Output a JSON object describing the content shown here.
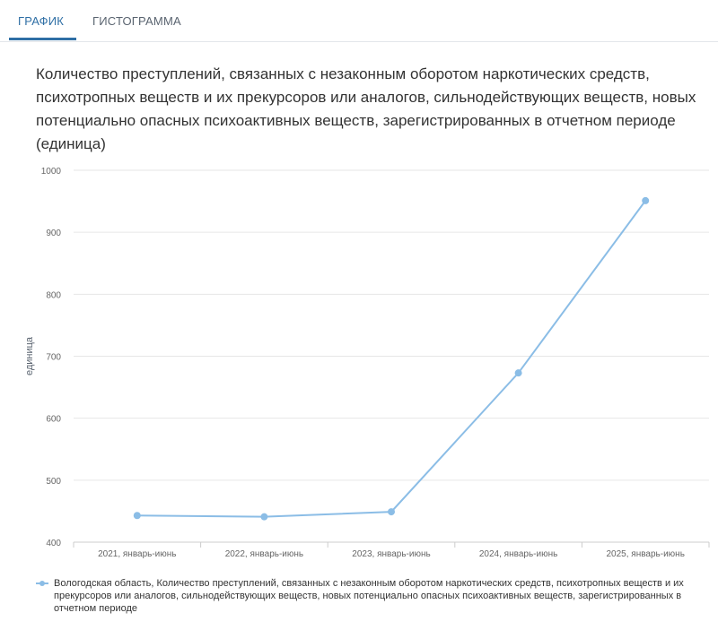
{
  "tabs": [
    {
      "label": "ГРАФИК",
      "active": true
    },
    {
      "label": "ГИСТОГРАММА",
      "active": false
    }
  ],
  "colors": {
    "accent": "#2f6fa5",
    "series": "#8bbde6",
    "grid": "#e6e6e6",
    "axis_text": "#666666"
  },
  "chart_data": {
    "type": "line",
    "title": "Количество преступлений, связанных с незаконным оборотом наркотических средств, психотропных веществ и их прекурсоров или аналогов, сильнодействующих веществ, новых потенциально опасных психоактивных веществ, зарегистрированных в отчетном периоде (единица)",
    "xlabel": "",
    "ylabel": "единица",
    "ylim": [
      400,
      1000
    ],
    "yticks": [
      "1000",
      "900",
      "800",
      "700",
      "600",
      "500",
      "400"
    ],
    "categories": [
      "2021, январь-июнь",
      "2022, январь-июнь",
      "2023, январь-июнь",
      "2024, январь-июнь",
      "2025, январь-июнь"
    ],
    "series": [
      {
        "name": "Вологодская область, Количество преступлений, связанных с незаконным оборотом наркотических средств, психотропных веществ и их прекурсоров или аналогов, сильнодействующих веществ, новых потенциально опасных психоактивных веществ, зарегистрированных в отчетном периоде",
        "values": [
          443,
          441,
          449,
          673,
          951
        ]
      }
    ],
    "grid": true,
    "legend_position": "bottom"
  }
}
